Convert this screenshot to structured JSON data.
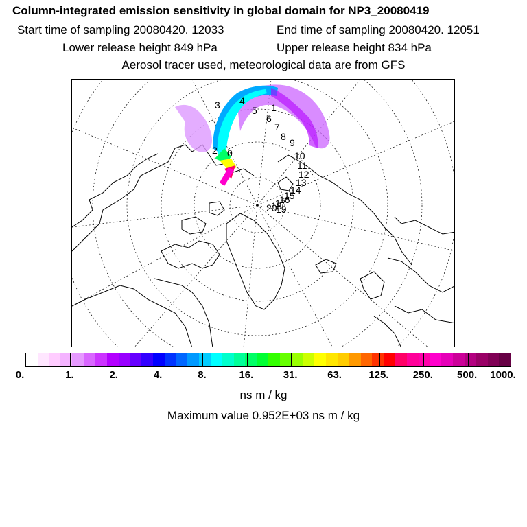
{
  "header": {
    "title": "Column-integrated emission sensitivity in global domain for NP3_20080419",
    "start_label": "Start time of sampling 20080420. 12033",
    "end_label": "End time of sampling 20080420. 12051",
    "lower_label": "Lower release height  849 hPa",
    "upper_label": "Upper release height  834 hPa",
    "tracer_line": "Aerosol tracer used, meteorological data are from GFS"
  },
  "map": {
    "projection": "north-polar-stereographic",
    "trajectory_labels": [
      "0",
      "1",
      "2",
      "3",
      "4",
      "5",
      "6",
      "7",
      "8",
      "9",
      "10",
      "11",
      "12",
      "13",
      "14",
      "15",
      "16",
      "17",
      "18",
      "19",
      "20"
    ],
    "plume_colors": [
      "#ff00cc",
      "#ff0066",
      "#ffff00",
      "#00ff66",
      "#00ffff",
      "#00aaff",
      "#cc66ff",
      "#dd99ff"
    ]
  },
  "colorbar": {
    "colors": [
      "#ffffff",
      "#ffe6ff",
      "#ffccff",
      "#f4b3ff",
      "#e699ff",
      "#d966ff",
      "#cc33ff",
      "#b300ff",
      "#9900ff",
      "#6600ff",
      "#3300ff",
      "#0000ff",
      "#0033ff",
      "#0066ff",
      "#0099ff",
      "#00ccff",
      "#00ffff",
      "#00ffcc",
      "#00ff99",
      "#00ff66",
      "#00ff33",
      "#33ff00",
      "#66ff00",
      "#99ff00",
      "#ccff00",
      "#ffff00",
      "#ffe600",
      "#ffcc00",
      "#ff9900",
      "#ff6600",
      "#ff3300",
      "#ff0000",
      "#ff0066",
      "#ff0099",
      "#ff00aa",
      "#ff00cc",
      "#e600b8",
      "#cc0099",
      "#b30080",
      "#990066",
      "#800055",
      "#660044"
    ],
    "tick_labels": [
      "0.",
      "1.",
      "2.",
      "4.",
      "8.",
      "16.",
      "31.",
      "63.",
      "125.",
      "250.",
      "500.",
      "1000."
    ],
    "units": "ns m / kg",
    "max_value_text": "Maximum value  0.952E+03 ns m / kg"
  }
}
